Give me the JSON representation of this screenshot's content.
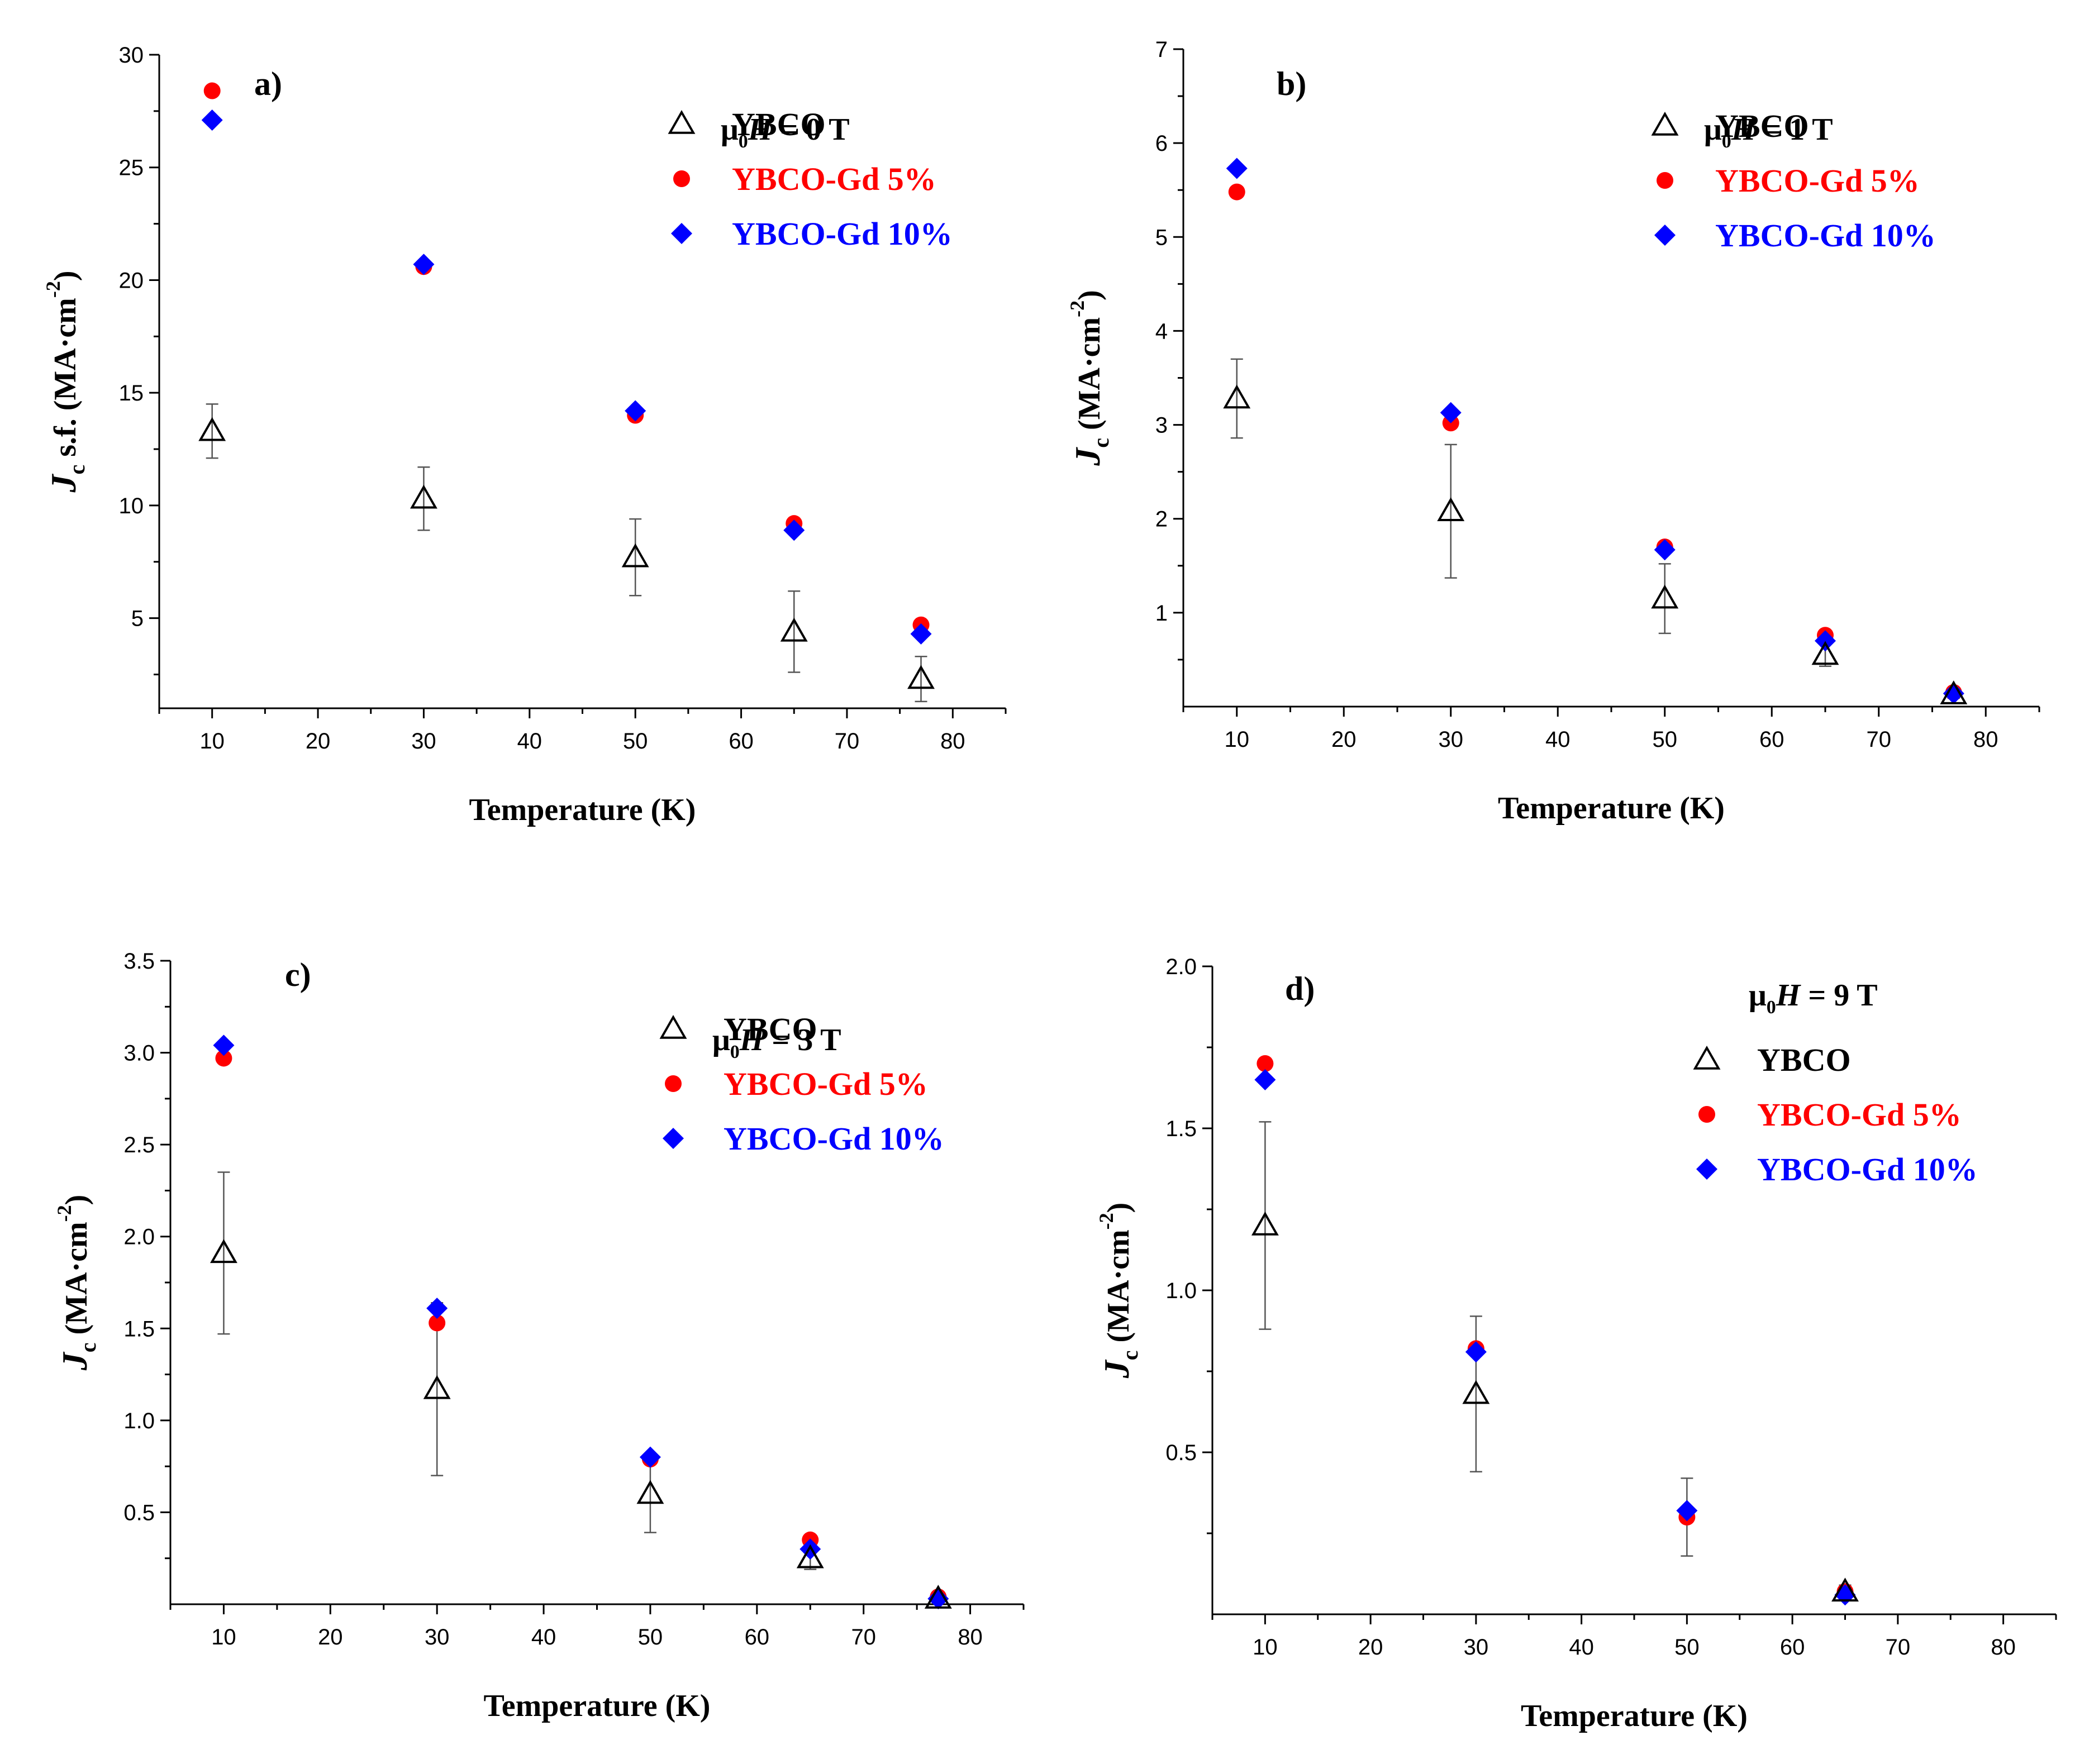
{
  "legend": {
    "ybco": "YBCO",
    "gd5": "YBCO-Gd 5%",
    "gd10": "YBCO-Gd 10%"
  },
  "colors": {
    "ybco": "#000000",
    "gd5": "#ff0000",
    "gd10": "#0000ff"
  },
  "chart_data": [
    {
      "type": "scatter",
      "panel": "a)",
      "field": "0 T",
      "xlabel": "Temperature (K)",
      "ylabel": "Jc s.f. (MA·cm-2)",
      "xlim": [
        5,
        85
      ],
      "ylim": [
        1,
        30
      ],
      "xticks": [
        10,
        20,
        30,
        40,
        50,
        60,
        70,
        80
      ],
      "yticks": [
        5,
        10,
        15,
        20,
        25,
        30
      ],
      "series": [
        {
          "name": "YBCO",
          "x": [
            10,
            30,
            50,
            65,
            77
          ],
          "y": [
            13.3,
            10.3,
            7.7,
            4.4,
            2.3
          ],
          "err": [
            1.2,
            1.4,
            1.7,
            1.8,
            1.0
          ]
        },
        {
          "name": "YBCO-Gd 5%",
          "x": [
            10,
            30,
            50,
            65,
            77
          ],
          "y": [
            28.4,
            20.6,
            14.0,
            9.2,
            4.7
          ]
        },
        {
          "name": "YBCO-Gd 10%",
          "x": [
            10,
            30,
            50,
            65,
            77
          ],
          "y": [
            27.1,
            20.7,
            14.2,
            8.9,
            4.3
          ]
        }
      ]
    },
    {
      "type": "scatter",
      "panel": "b)",
      "field": "1 T",
      "xlabel": "Temperature (K)",
      "ylabel": "Jc (MA·cm-2)",
      "xlim": [
        5,
        85
      ],
      "ylim": [
        0,
        7
      ],
      "xticks": [
        10,
        20,
        30,
        40,
        50,
        60,
        70,
        80
      ],
      "yticks": [
        1,
        2,
        3,
        4,
        5,
        6,
        7
      ],
      "series": [
        {
          "name": "YBCO",
          "x": [
            10,
            30,
            50,
            65,
            77
          ],
          "y": [
            3.28,
            2.08,
            1.15,
            0.55,
            0.13
          ],
          "err": [
            0.42,
            0.71,
            0.37,
            0.12,
            0.04
          ]
        },
        {
          "name": "YBCO-Gd 5%",
          "x": [
            10,
            30,
            50,
            65,
            77
          ],
          "y": [
            5.48,
            3.02,
            1.7,
            0.76,
            0.15
          ]
        },
        {
          "name": "YBCO-Gd 10%",
          "x": [
            10,
            30,
            50,
            65,
            77
          ],
          "y": [
            5.73,
            3.13,
            1.67,
            0.7,
            0.14
          ]
        }
      ]
    },
    {
      "type": "scatter",
      "panel": "c)",
      "field": "3 T",
      "xlabel": "Temperature (K)",
      "ylabel": "Jc (MA·cm-2)",
      "xlim": [
        5,
        85
      ],
      "ylim": [
        0,
        3.5
      ],
      "xticks": [
        10,
        20,
        30,
        40,
        50,
        60,
        70,
        80
      ],
      "yticks": [
        0.5,
        1.0,
        1.5,
        2.0,
        2.5,
        3.0,
        3.5
      ],
      "series": [
        {
          "name": "YBCO",
          "x": [
            10,
            30,
            50,
            65,
            77
          ],
          "y": [
            1.91,
            1.17,
            0.6,
            0.25,
            0.03
          ],
          "err": [
            0.44,
            0.47,
            0.21,
            0.06,
            0.02
          ]
        },
        {
          "name": "YBCO-Gd 5%",
          "x": [
            10,
            30,
            50,
            65,
            77
          ],
          "y": [
            2.97,
            1.53,
            0.79,
            0.35,
            0.04
          ]
        },
        {
          "name": "YBCO-Gd 10%",
          "x": [
            10,
            30,
            50,
            65,
            77
          ],
          "y": [
            3.04,
            1.61,
            0.8,
            0.3,
            0.03
          ]
        }
      ]
    },
    {
      "type": "scatter",
      "panel": "d)",
      "field": "9 T",
      "xlabel": "Temperature (K)",
      "ylabel": "Jc (MA·cm-2)",
      "xlim": [
        5,
        85
      ],
      "ylim": [
        0,
        2.0
      ],
      "xticks": [
        10,
        20,
        30,
        40,
        50,
        60,
        70,
        80
      ],
      "yticks": [
        0.5,
        1.0,
        1.5,
        2.0
      ],
      "series": [
        {
          "name": "YBCO",
          "x": [
            10,
            30,
            65
          ],
          "y": [
            1.2,
            0.68,
            0.07
          ],
          "err": [
            0.32,
            0.24,
            0.02
          ]
        },
        {
          "name": "YBCO-Gd 5%",
          "x": [
            10,
            30,
            50,
            65
          ],
          "y": [
            1.7,
            0.82,
            0.3,
            0.07
          ]
        },
        {
          "name": "YBCO-Gd 10%",
          "x": [
            10,
            30,
            50,
            65
          ],
          "y": [
            1.65,
            0.81,
            0.32,
            0.06
          ]
        }
      ],
      "ybco_50K": {
        "x": 50,
        "err_low": 0.18,
        "err_high": 0.42
      }
    }
  ]
}
